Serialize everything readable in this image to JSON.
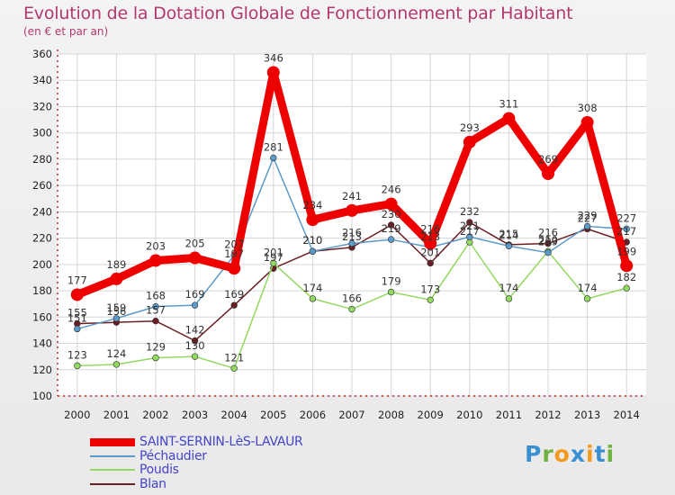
{
  "header": {
    "title": "Evolution de la Dotation Globale de Fonctionnement par Habitant",
    "subtitle": "(en € et par an)"
  },
  "logo": {
    "text": "Proxiti",
    "colors": [
      "#3a8fd1",
      "#6cb33f",
      "#f39a1e"
    ]
  },
  "chart_data": {
    "type": "line",
    "title": "Evolution de la Dotation Globale de Fonctionnement par Habitant",
    "subtitle": "(en € et par an)",
    "xlabel": "",
    "ylabel": "",
    "ylim": [
      100,
      360
    ],
    "yticks": [
      100,
      120,
      140,
      160,
      180,
      200,
      220,
      240,
      260,
      280,
      300,
      320,
      340,
      360
    ],
    "grid": true,
    "legend_position": "bottom-left",
    "categories": [
      "2000",
      "2001",
      "2002",
      "2003",
      "2004",
      "2005",
      "2006",
      "2007",
      "2008",
      "2009",
      "2010",
      "2011",
      "2012",
      "2013",
      "2014"
    ],
    "series": [
      {
        "name": "Blan",
        "color": "#6b1f24",
        "values": [
          155,
          156,
          157,
          142,
          169,
          197,
          210,
          213,
          230,
          201,
          232,
          215,
          216,
          227,
          217
        ]
      },
      {
        "name": "Poudis",
        "color": "#93d860",
        "values": [
          123,
          124,
          129,
          130,
          121,
          201,
          174,
          166,
          179,
          173,
          217,
          174,
          210,
          174,
          182
        ]
      },
      {
        "name": "Péchaudier",
        "color": "#5b9bc9",
        "values": [
          151,
          159,
          168,
          169,
          207,
          281,
          210,
          216,
          219,
          213,
          221,
          214,
          209,
          229,
          227
        ]
      },
      {
        "name": "SAINT-SERNIN-LèS-LAVAUR",
        "color": "#ee0000",
        "values": [
          177,
          189,
          203,
          205,
          197,
          346,
          234,
          241,
          246,
          216,
          293,
          311,
          269,
          308,
          199
        ]
      }
    ],
    "legend_order": [
      "SAINT-SERNIN-LèS-LAVAUR",
      "Péchaudier",
      "Poudis",
      "Blan"
    ]
  }
}
